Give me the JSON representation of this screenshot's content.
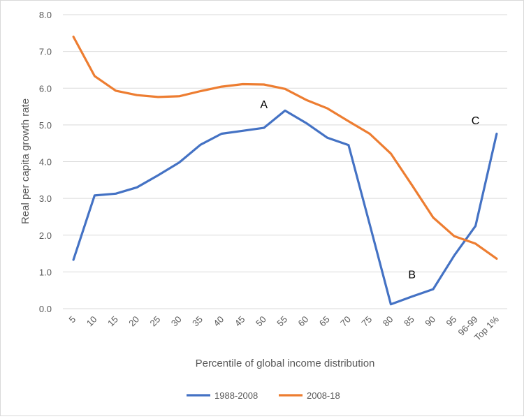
{
  "chart_data": {
    "type": "line",
    "title": "",
    "xlabel": "Percentile of global income distribution",
    "ylabel": "Real per capita growth rate",
    "ylim": [
      0,
      8
    ],
    "yticks": [
      "0.0",
      "1.0",
      "2.0",
      "3.0",
      "4.0",
      "5.0",
      "6.0",
      "7.0",
      "8.0"
    ],
    "categories": [
      "5",
      "10",
      "15",
      "20",
      "25",
      "30",
      "35",
      "40",
      "45",
      "50",
      "55",
      "60",
      "65",
      "70",
      "75",
      "80",
      "85",
      "90",
      "95",
      "96-99",
      "Top 1%"
    ],
    "grid": true,
    "legend_position": "bottom",
    "series": [
      {
        "name": "1988-2008",
        "color": "#4472c4",
        "values": [
          1.33,
          3.08,
          3.13,
          3.3,
          3.63,
          3.98,
          4.46,
          4.76,
          4.84,
          4.92,
          5.39,
          5.05,
          4.65,
          4.45,
          2.3,
          0.12,
          0.33,
          0.53,
          1.45,
          2.25,
          4.76
        ]
      },
      {
        "name": "2008-18",
        "color": "#ed7d31",
        "values": [
          7.4,
          6.33,
          5.93,
          5.81,
          5.76,
          5.78,
          5.92,
          6.04,
          6.11,
          6.1,
          5.98,
          5.68,
          5.45,
          5.1,
          4.76,
          4.22,
          3.36,
          2.48,
          1.97,
          1.77,
          1.36
        ]
      }
    ],
    "annotations": [
      {
        "text": "A",
        "category": "50",
        "y": 5.45
      },
      {
        "text": "B",
        "category": "85",
        "y": 0.83
      },
      {
        "text": "C",
        "category": "96-99",
        "y": 5.02
      }
    ]
  }
}
